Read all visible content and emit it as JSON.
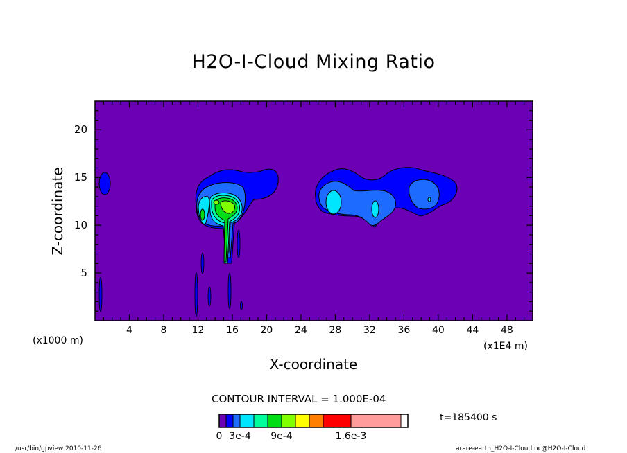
{
  "chart_data": {
    "type": "contour",
    "title": "H2O-I-Cloud Mixing Ratio",
    "xlabel": "X-coordinate",
    "ylabel": "Z-coordinate",
    "x_unit_note": "(x1E4 m)",
    "z_unit_note": "(x1000 m)",
    "xticks": [
      "4",
      "8",
      "12",
      "16",
      "20",
      "24",
      "28",
      "32",
      "36",
      "40",
      "44",
      "48"
    ],
    "yticks": [
      "5",
      "10",
      "15",
      "20"
    ],
    "xlim": [
      0,
      51
    ],
    "ylim": [
      0,
      23
    ],
    "contour_interval_text": "CONTOUR INTERVAL = 1.000E-04",
    "time_text": "t=185400 s",
    "background_color": "#6b00b4",
    "colorbar": {
      "colors": [
        "#6b00b4",
        "#0000ff",
        "#1e6cff",
        "#00e6ff",
        "#00ff9c",
        "#00dd14",
        "#80ff00",
        "#ffff00",
        "#ff7f00",
        "#ff0000",
        "#ff9c9c"
      ],
      "labels": [
        "0",
        "3e-4",
        "9e-4",
        "1.6e-3"
      ],
      "label_bins": [
        0,
        3,
        9,
        16
      ]
    },
    "features": [
      {
        "region": "small isolated cloud",
        "x": 1.2,
        "z": 14.3,
        "max_level": 1
      },
      {
        "region": "convective cloud with core",
        "x_range": [
          12,
          22
        ],
        "z_range": [
          3,
          16.5
        ],
        "max_level": 6
      },
      {
        "region": "anvil cloud",
        "x_range": [
          25.5,
          42.5
        ],
        "z_range": [
          9.8,
          16.2
        ],
        "max_level": 3
      },
      {
        "region": "lower column traces",
        "x_range": [
          0.5,
          17
        ],
        "z_range": [
          0.5,
          7
        ],
        "max_level": 1
      }
    ]
  },
  "footer": {
    "left": "/usr/bin/gpview   2010-11-26",
    "right": "arare-earth_H2O-I-Cloud.nc@H2O-I-Cloud"
  }
}
